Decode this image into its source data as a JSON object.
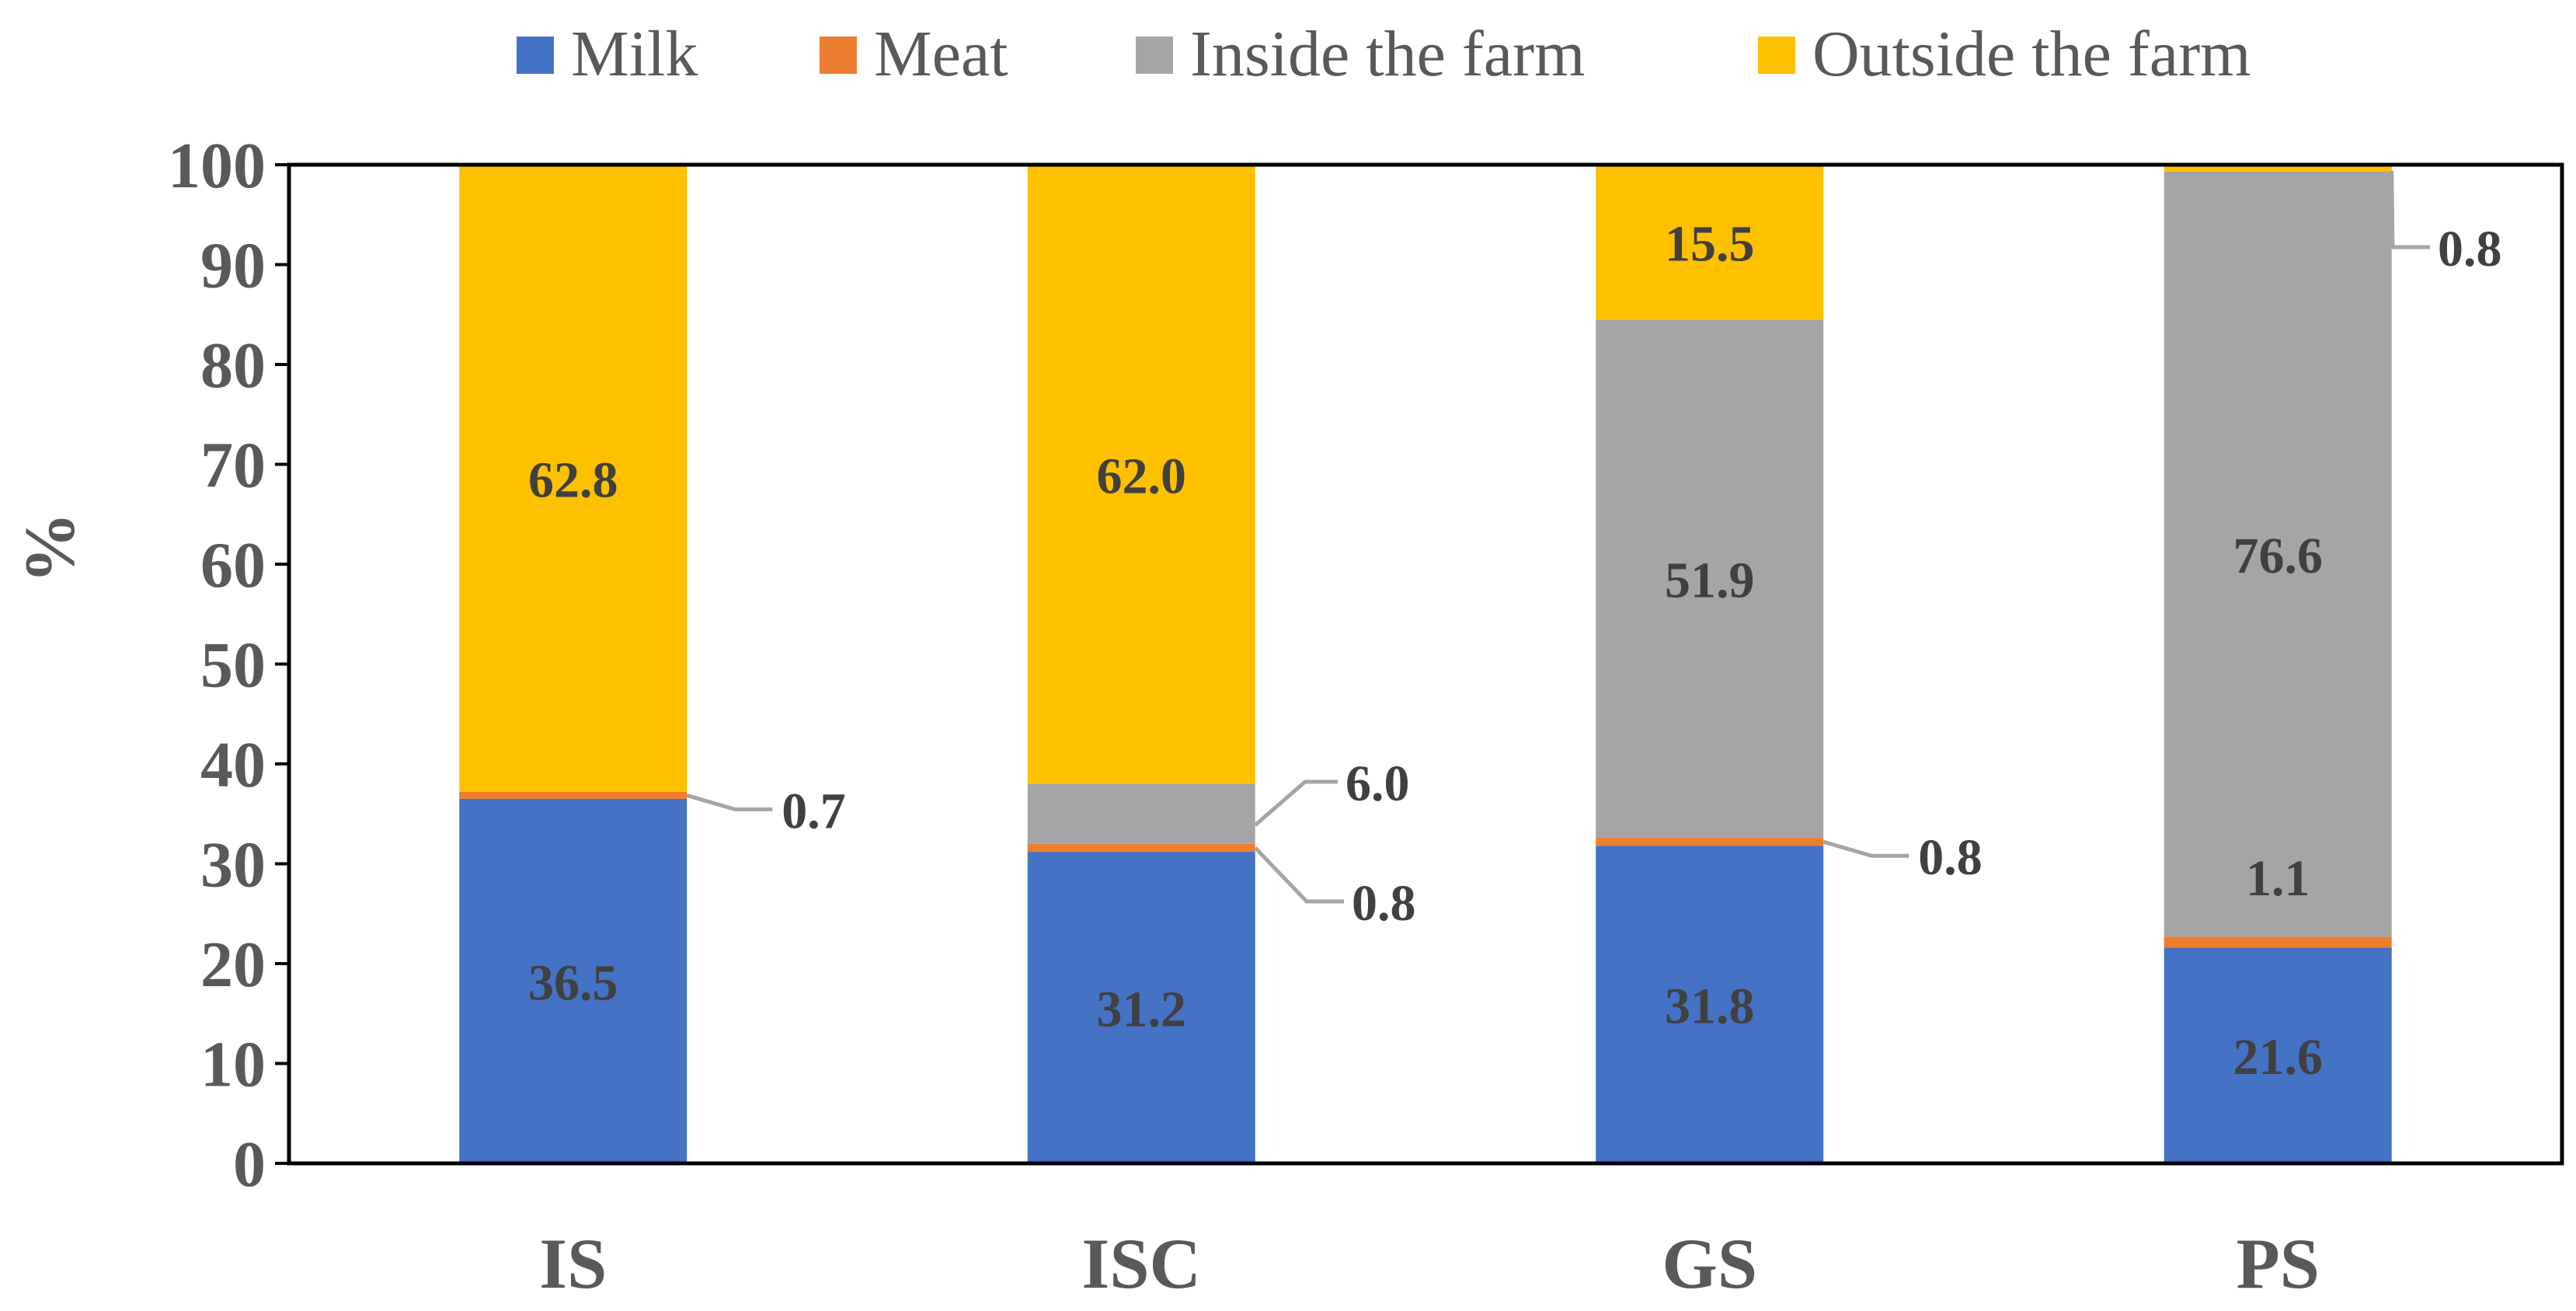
{
  "chart_data": {
    "type": "bar",
    "stacked": true,
    "title": "",
    "xlabel": "",
    "ylabel": "%",
    "ylim": [
      0,
      100
    ],
    "yticks": [
      0,
      10,
      20,
      30,
      40,
      50,
      60,
      70,
      80,
      90,
      100
    ],
    "grid": false,
    "legend_position": "top",
    "categories": [
      "IS",
      "ISC",
      "GS",
      "PS"
    ],
    "series": [
      {
        "name": "Milk",
        "color": "#4472C4",
        "values": [
          36.5,
          31.2,
          31.8,
          21.6
        ]
      },
      {
        "name": "Meat",
        "color": "#ED7D31",
        "values": [
          0.7,
          0.8,
          0.8,
          1.1
        ]
      },
      {
        "name": "Inside the farm",
        "color": "#A5A5A5",
        "values": [
          0,
          6.0,
          51.9,
          76.6
        ]
      },
      {
        "name": "Outside the farm",
        "color": "#FFC000",
        "values": [
          62.8,
          62.0,
          15.5,
          0.8
        ]
      }
    ],
    "data_labels": [
      [
        "36.5",
        "31.2",
        "31.8",
        "21.6"
      ],
      [
        "0.7",
        "0.8",
        "0.8",
        "1.1"
      ],
      [
        "",
        "6.0",
        "51.9",
        "76.6"
      ],
      [
        "62.8",
        "62.0",
        "15.5",
        "0.8"
      ]
    ]
  }
}
